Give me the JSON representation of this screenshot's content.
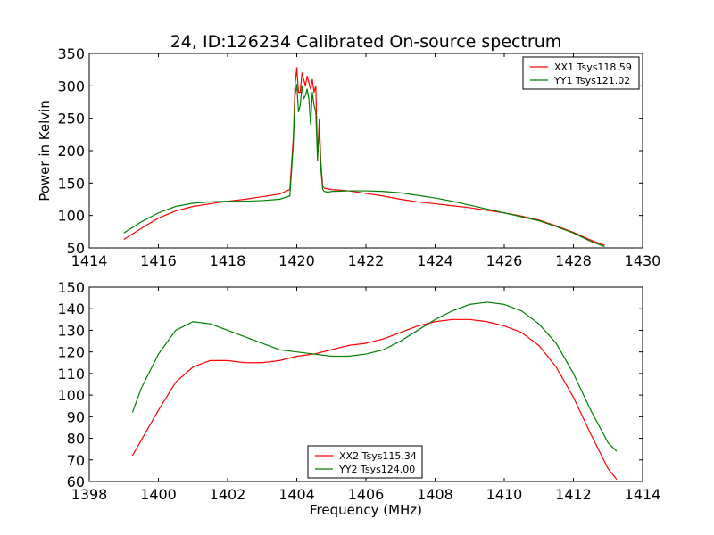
{
  "figure": {
    "title": "24, ID:126234 Calibrated On-source spectrum",
    "xlabel": "Frequency (MHz)",
    "ylabel": "Power in Kelvin"
  },
  "chart_data": [
    {
      "type": "line",
      "title": "24, ID:126234 Calibrated On-source spectrum",
      "xlabel": "",
      "ylabel": "Power in Kelvin",
      "xlim": [
        1414,
        1430
      ],
      "ylim": [
        50,
        350
      ],
      "xticks": [
        "1414",
        "1416",
        "1418",
        "1420",
        "1422",
        "1424",
        "1426",
        "1428",
        "1430"
      ],
      "yticks": [
        "50",
        "100",
        "150",
        "200",
        "250",
        "300",
        "350"
      ],
      "grid": false,
      "legend": "top-right",
      "series": [
        {
          "name": "XX1 Tsys118.59",
          "color": "#ff0000",
          "x": [
            1415,
            1415.5,
            1416,
            1416.5,
            1417,
            1417.5,
            1418,
            1418.5,
            1419,
            1419.5,
            1419.8,
            1419.9,
            1419.95,
            1420.0,
            1420.05,
            1420.1,
            1420.15,
            1420.2,
            1420.25,
            1420.3,
            1420.35,
            1420.4,
            1420.45,
            1420.5,
            1420.55,
            1420.6,
            1420.65,
            1420.7,
            1420.75,
            1420.8,
            1420.9,
            1421,
            1421.5,
            1422,
            1422.5,
            1423,
            1423.5,
            1424,
            1424.5,
            1425,
            1425.5,
            1426,
            1426.5,
            1427,
            1427.5,
            1428,
            1428.5,
            1428.9
          ],
          "values": [
            63,
            80,
            96,
            107,
            114,
            118,
            122,
            125,
            129,
            133,
            140,
            220,
            300,
            328,
            290,
            290,
            320,
            310,
            300,
            315,
            305,
            295,
            310,
            290,
            300,
            190,
            248,
            180,
            145,
            142,
            141,
            140,
            138,
            134,
            130,
            125,
            121,
            118,
            115,
            112,
            108,
            104,
            99,
            93,
            84,
            74,
            62,
            54
          ]
        },
        {
          "name": "YY1 Tsys121.02",
          "color": "#007f00",
          "x": [
            1415,
            1415.5,
            1416,
            1416.5,
            1417,
            1417.5,
            1418,
            1418.5,
            1419,
            1419.5,
            1419.8,
            1419.9,
            1419.95,
            1420.0,
            1420.05,
            1420.1,
            1420.15,
            1420.2,
            1420.25,
            1420.3,
            1420.35,
            1420.4,
            1420.45,
            1420.5,
            1420.55,
            1420.6,
            1420.65,
            1420.7,
            1420.75,
            1420.8,
            1420.9,
            1421,
            1421.5,
            1422,
            1422.5,
            1423,
            1423.5,
            1424,
            1424.5,
            1425,
            1425.5,
            1426,
            1426.5,
            1427,
            1427.5,
            1428,
            1428.5,
            1428.9
          ],
          "values": [
            73,
            90,
            104,
            114,
            119,
            121,
            122,
            122,
            123,
            125,
            130,
            210,
            285,
            302,
            260,
            270,
            300,
            280,
            285,
            295,
            280,
            240,
            290,
            270,
            260,
            185,
            235,
            170,
            140,
            137,
            136,
            137,
            138,
            138,
            137,
            135,
            131,
            127,
            122,
            116,
            110,
            104,
            98,
            92,
            83,
            73,
            60,
            52
          ]
        }
      ]
    },
    {
      "type": "line",
      "title": "",
      "xlabel": "Frequency (MHz)",
      "ylabel": "",
      "xlim": [
        1398,
        1414
      ],
      "ylim": [
        60,
        150
      ],
      "xticks": [
        "1398",
        "1400",
        "1402",
        "1404",
        "1406",
        "1408",
        "1410",
        "1412",
        "1414"
      ],
      "yticks": [
        "60",
        "70",
        "80",
        "90",
        "100",
        "110",
        "120",
        "130",
        "140",
        "150"
      ],
      "grid": false,
      "legend": "bottom-center",
      "series": [
        {
          "name": "XX2 Tsys115.34",
          "color": "#ff0000",
          "x": [
            1399.25,
            1399.5,
            1400,
            1400.5,
            1401,
            1401.5,
            1402,
            1402.5,
            1403,
            1403.5,
            1404,
            1404.5,
            1405,
            1405.5,
            1406,
            1406.5,
            1407,
            1407.5,
            1408,
            1408.5,
            1409,
            1409.5,
            1410,
            1410.5,
            1411,
            1411.5,
            1412,
            1412.5,
            1413,
            1413.25
          ],
          "values": [
            72,
            79,
            93,
            106,
            113,
            116,
            116,
            115,
            115,
            116,
            118,
            119,
            121,
            123,
            124,
            126,
            129,
            132,
            134,
            135,
            135,
            134,
            132,
            129,
            123,
            113,
            99,
            82,
            66,
            61
          ]
        },
        {
          "name": "YY2 Tsys124.00",
          "color": "#007f00",
          "x": [
            1399.25,
            1399.5,
            1400,
            1400.5,
            1401,
            1401.5,
            1402,
            1402.5,
            1403,
            1403.5,
            1404,
            1404.5,
            1405,
            1405.5,
            1406,
            1406.5,
            1407,
            1407.5,
            1408,
            1408.5,
            1409,
            1409.5,
            1410,
            1410.5,
            1411,
            1411.5,
            1412,
            1412.5,
            1413,
            1413.25
          ],
          "values": [
            92,
            103,
            119,
            130,
            134,
            133,
            130,
            127,
            124,
            121,
            120,
            119,
            118,
            118,
            119,
            121,
            125,
            130,
            135,
            139,
            142,
            143,
            142,
            139,
            133,
            124,
            110,
            93,
            78,
            74
          ]
        }
      ]
    }
  ]
}
